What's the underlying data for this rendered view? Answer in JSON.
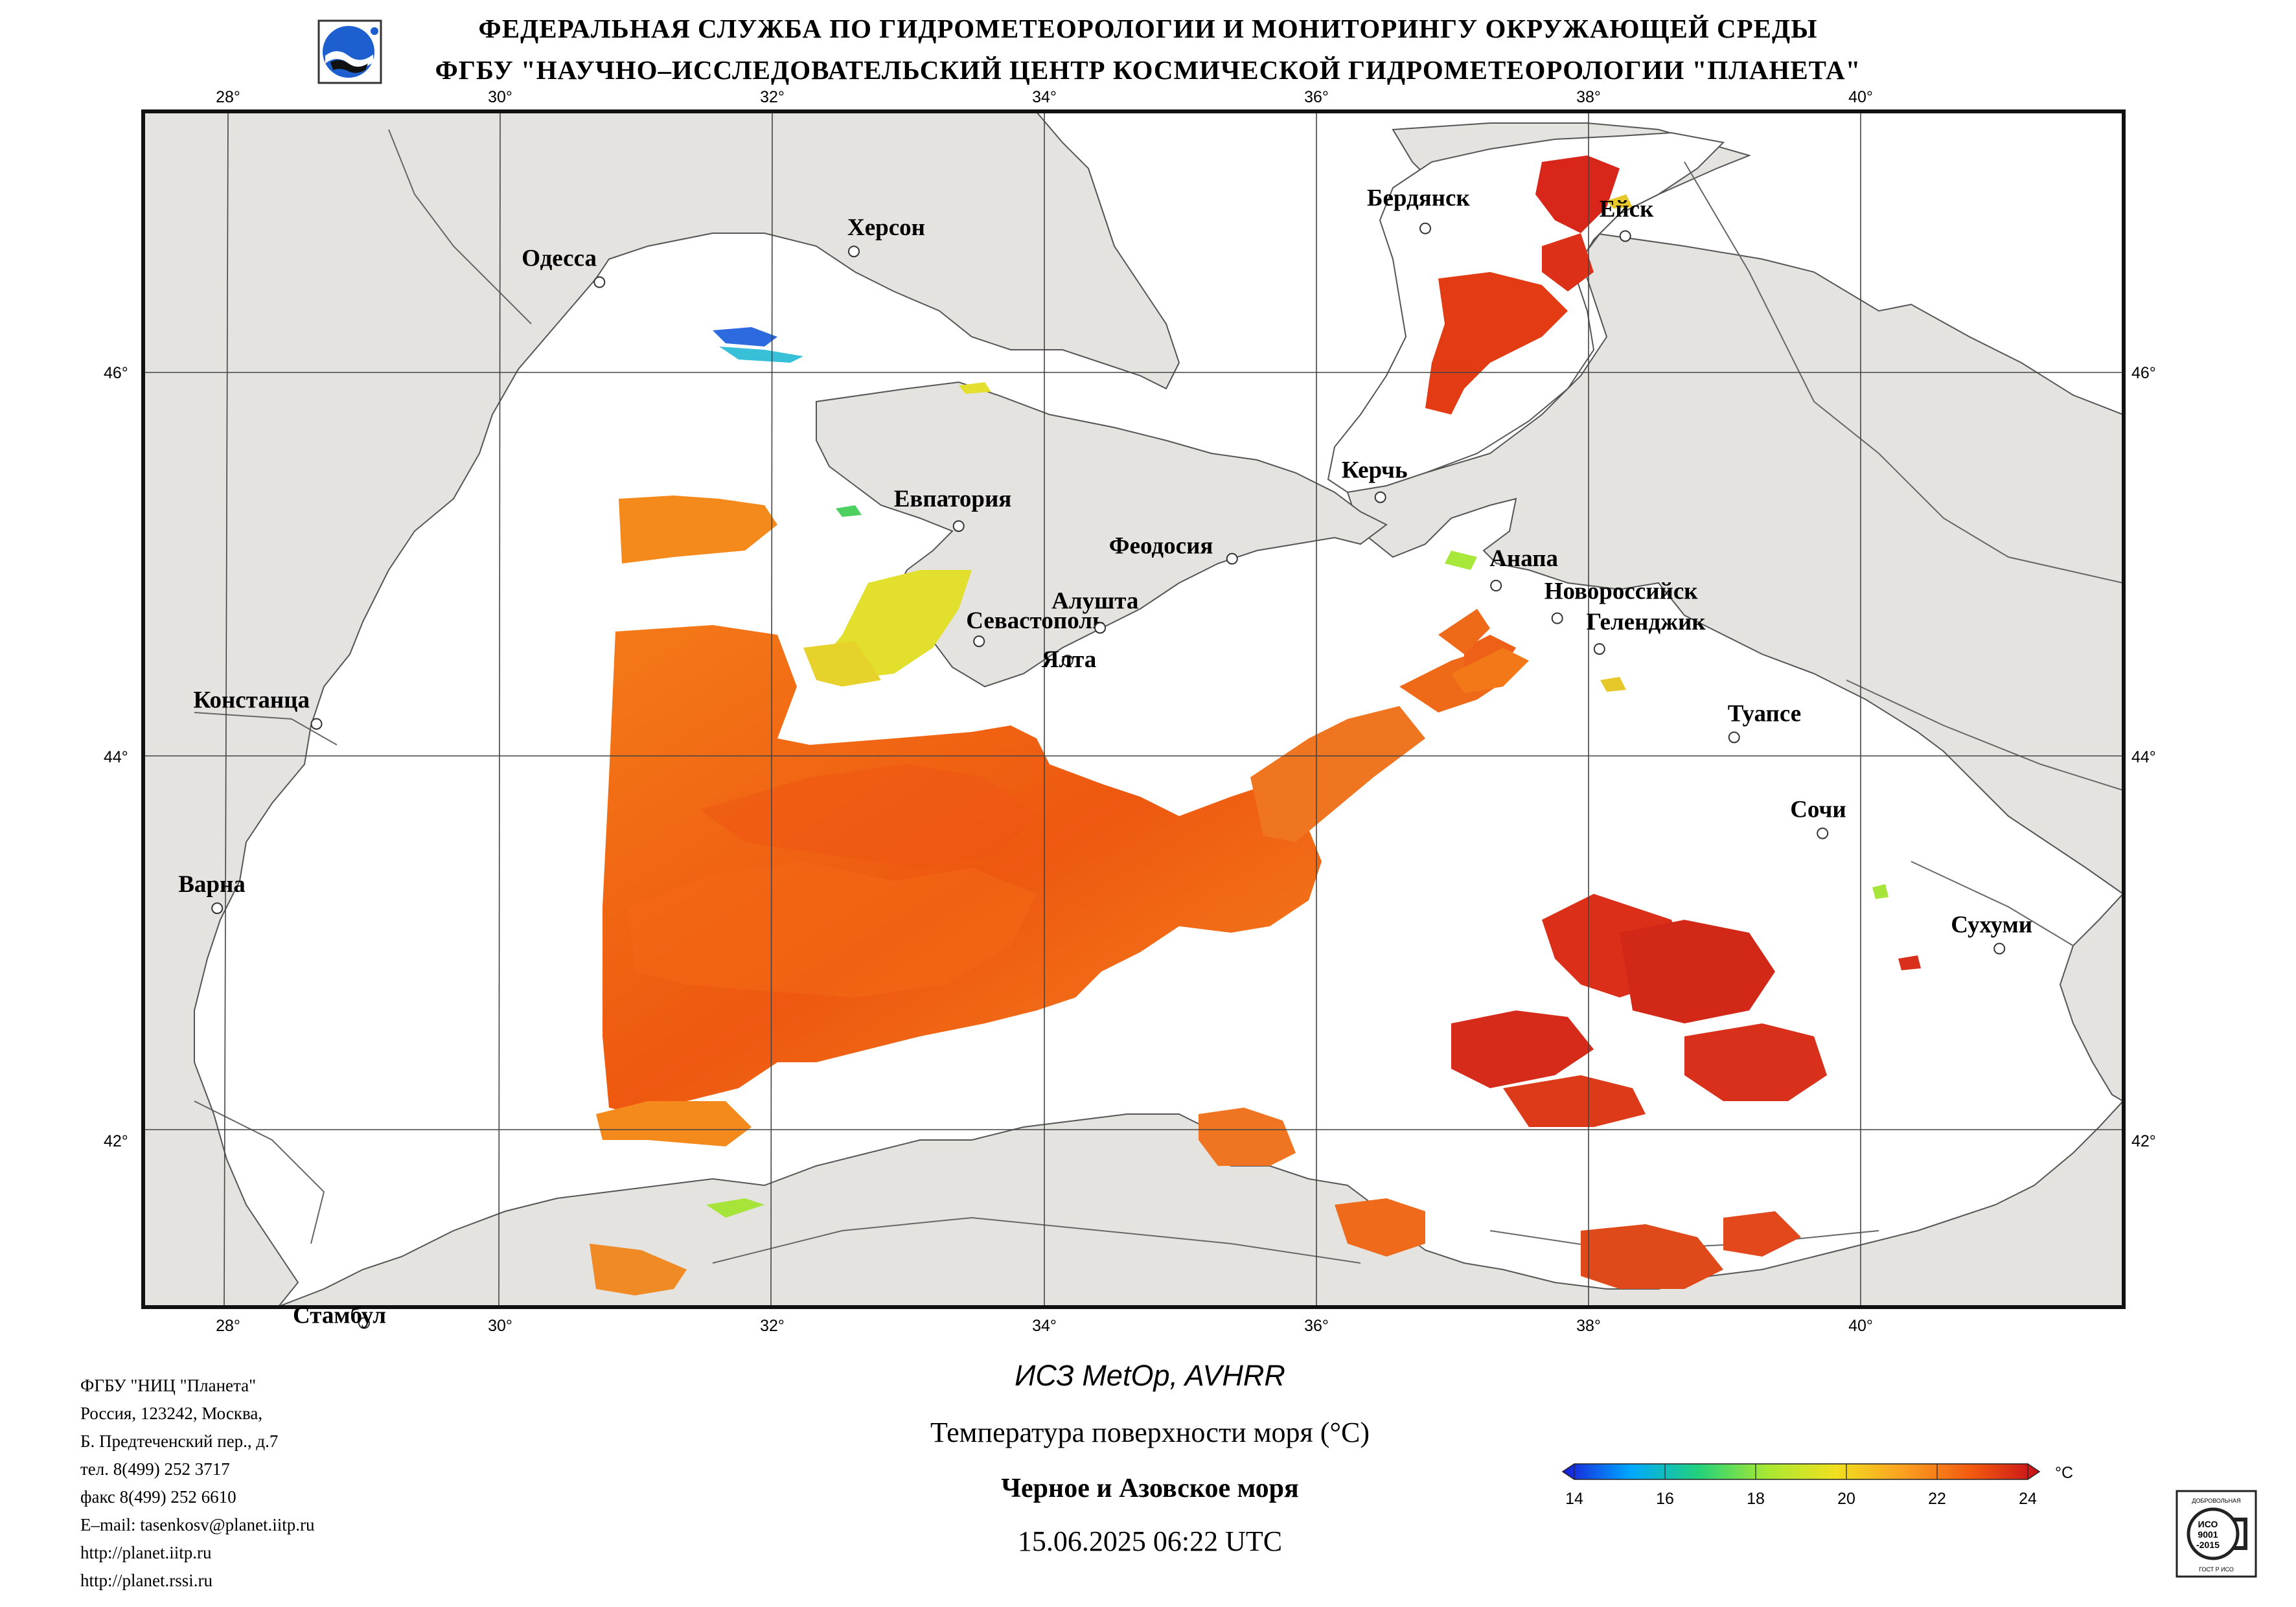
{
  "header": {
    "line1": "ФЕДЕРАЛЬНАЯ СЛУЖБА ПО ГИДРОМЕТЕОРОЛОГИИ И МОНИТОРИНГУ ОКРУЖАЮЩЕЙ СРЕДЫ",
    "line2": "ФГБУ \"НАУЧНО–ИССЛЕДОВАТЕЛЬСКИЙ ЦЕНТР КОСМИЧЕСКОЙ ГИДРОМЕТЕОРОЛОГИИ \"ПЛАНЕТА\""
  },
  "map": {
    "lon_ticks": [
      "28°",
      "30°",
      "32°",
      "34°",
      "36°",
      "38°",
      "40°"
    ],
    "lat_ticks": [
      "46°",
      "44°",
      "42°"
    ],
    "cities": [
      {
        "name": "Херсон",
        "lon": 32.6,
        "lat": 46.63
      },
      {
        "name": "Одесса",
        "lon": 30.73,
        "lat": 46.47
      },
      {
        "name": "Бердянск",
        "lon": 36.8,
        "lat": 46.75
      },
      {
        "name": "Ейск",
        "lon": 38.27,
        "lat": 46.71
      },
      {
        "name": "Евпатория",
        "lon": 33.37,
        "lat": 45.2
      },
      {
        "name": "Керчь",
        "lon": 36.47,
        "lat": 45.35
      },
      {
        "name": "Феодосия",
        "lon": 35.38,
        "lat": 45.03
      },
      {
        "name": "Анапа",
        "lon": 37.32,
        "lat": 44.89
      },
      {
        "name": "Новороссийск",
        "lon": 37.77,
        "lat": 44.72
      },
      {
        "name": "Севастополь",
        "lon": 33.52,
        "lat": 44.6
      },
      {
        "name": "Алушта",
        "lon": 34.41,
        "lat": 44.67
      },
      {
        "name": "Геленджик",
        "lon": 38.08,
        "lat": 44.56
      },
      {
        "name": "Ялта",
        "lon": 34.17,
        "lat": 44.5
      },
      {
        "name": "Констанца",
        "lon": 28.65,
        "lat": 44.17
      },
      {
        "name": "Туапсе",
        "lon": 39.07,
        "lat": 44.1
      },
      {
        "name": "Сочи",
        "lon": 39.72,
        "lat": 43.6
      },
      {
        "name": "Варна",
        "lon": 27.92,
        "lat": 43.21
      },
      {
        "name": "Сухуми",
        "lon": 41.02,
        "lat": 43.0
      },
      {
        "name": "Стамбул",
        "lon": 29.0,
        "lat": 41.05
      }
    ]
  },
  "info": {
    "org": "ФГБУ \"НИЦ \"Планета\"",
    "address1": "Россия, 123242, Москва,",
    "address2": "Б. Предтеченский пер., д.7",
    "phone": "тел. 8(499) 252 3717",
    "fax": "факс 8(499) 252 6610",
    "email": "E–mail: tasenkosv@planet.iitp.ru",
    "url1": "http://planet.iitp.ru",
    "url2": "http://planet.rssi.ru"
  },
  "caption": {
    "satellite": "ИСЗ MetOp, AVHRR",
    "parameter": "Температура поверхности моря (°C)",
    "region": "Черное и Азовское моря",
    "datetime": "15.06.2025 06:22 UTC"
  },
  "colorbar": {
    "unit": "°C",
    "ticks": [
      "14",
      "16",
      "18",
      "20",
      "22",
      "24"
    ],
    "min": 14,
    "max": 24,
    "colors": [
      "#1a1ad8",
      "#00a8ff",
      "#22d27a",
      "#a8e832",
      "#f0e020",
      "#fba020",
      "#f25a10",
      "#c8101a"
    ]
  },
  "colors": {
    "land": "#e5e3e0",
    "sea": "#ffffff",
    "sst_warm": "#f47015",
    "sst_hot": "#d9281a",
    "sst_cool": "#dede2a"
  },
  "iso_badge": {
    "top": "ДОБРОВОЛЬНАЯ",
    "mid1": "ИСО",
    "mid2": "9001",
    "mid3": "-2015",
    "bottom": "ГОСТ Р ИСО"
  }
}
